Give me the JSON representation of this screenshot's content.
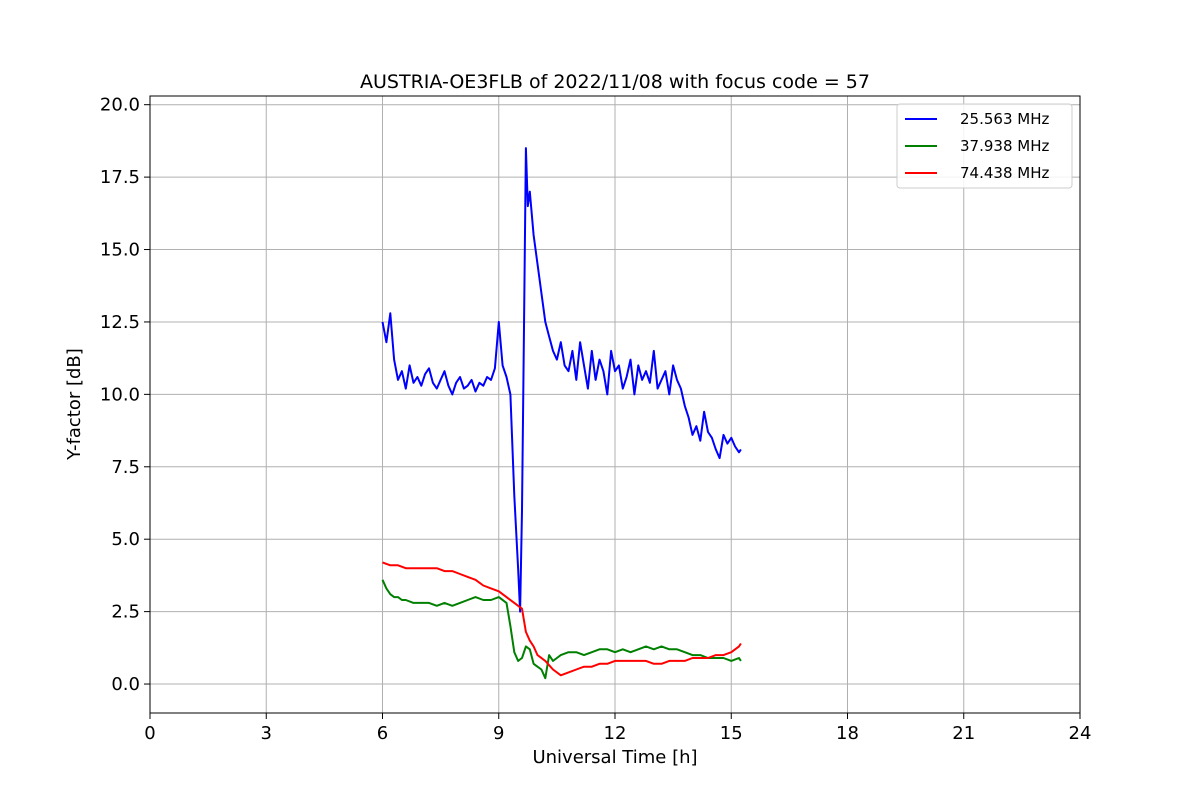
{
  "chart_data": {
    "type": "line",
    "title": "AUSTRIA-OE3FLB of 2022/11/08 with focus code = 57",
    "xlabel": "Universal Time [h]",
    "ylabel": "Y-factor [dB]",
    "xlim": [
      0,
      24
    ],
    "ylim": [
      -1,
      20.3
    ],
    "xticks": [
      0,
      3,
      6,
      9,
      12,
      15,
      18,
      21,
      24
    ],
    "xtick_labels": [
      "0",
      "3",
      "6",
      "9",
      "12",
      "15",
      "18",
      "21",
      "24"
    ],
    "yticks": [
      0,
      2.5,
      5,
      7.5,
      10,
      12.5,
      15,
      17.5,
      20
    ],
    "ytick_labels": [
      "0.0",
      "2.5",
      "5.0",
      "7.5",
      "10.0",
      "12.5",
      "15.0",
      "17.5",
      "20.0"
    ],
    "grid": true,
    "legend_position": "top-right",
    "series": [
      {
        "name": "25.563 MHz",
        "color": "#0000ff",
        "x": [
          6.0,
          6.1,
          6.2,
          6.3,
          6.4,
          6.5,
          6.6,
          6.7,
          6.8,
          6.9,
          7.0,
          7.1,
          7.2,
          7.3,
          7.4,
          7.5,
          7.6,
          7.7,
          7.8,
          7.9,
          8.0,
          8.1,
          8.2,
          8.3,
          8.4,
          8.5,
          8.6,
          8.7,
          8.8,
          8.9,
          9.0,
          9.1,
          9.2,
          9.3,
          9.4,
          9.5,
          9.55,
          9.6,
          9.65,
          9.7,
          9.75,
          9.8,
          9.9,
          10.0,
          10.1,
          10.2,
          10.3,
          10.4,
          10.5,
          10.6,
          10.7,
          10.8,
          10.9,
          11.0,
          11.1,
          11.2,
          11.3,
          11.4,
          11.5,
          11.6,
          11.7,
          11.8,
          11.9,
          12.0,
          12.1,
          12.2,
          12.3,
          12.4,
          12.5,
          12.6,
          12.7,
          12.8,
          12.9,
          13.0,
          13.1,
          13.2,
          13.3,
          13.4,
          13.5,
          13.6,
          13.7,
          13.8,
          13.9,
          14.0,
          14.1,
          14.2,
          14.3,
          14.4,
          14.5,
          14.6,
          14.7,
          14.8,
          14.9,
          15.0,
          15.1,
          15.2,
          15.25
        ],
        "values": [
          12.5,
          11.8,
          12.8,
          11.2,
          10.5,
          10.8,
          10.2,
          11.0,
          10.4,
          10.6,
          10.3,
          10.7,
          10.9,
          10.4,
          10.2,
          10.5,
          10.8,
          10.3,
          10.0,
          10.4,
          10.6,
          10.2,
          10.3,
          10.5,
          10.1,
          10.4,
          10.3,
          10.6,
          10.5,
          10.9,
          12.5,
          11.0,
          10.6,
          10.0,
          6.5,
          4.0,
          2.5,
          6.0,
          12.0,
          18.5,
          16.5,
          17.0,
          15.5,
          14.5,
          13.5,
          12.5,
          12.0,
          11.5,
          11.2,
          11.8,
          11.0,
          10.8,
          11.5,
          10.5,
          11.8,
          11.0,
          10.2,
          11.5,
          10.5,
          11.2,
          10.8,
          10.0,
          11.5,
          10.8,
          11.0,
          10.2,
          10.6,
          11.2,
          10.0,
          11.0,
          10.5,
          10.8,
          10.4,
          11.5,
          10.2,
          10.5,
          10.8,
          10.0,
          11.0,
          10.5,
          10.2,
          9.6,
          9.2,
          8.6,
          8.9,
          8.4,
          9.4,
          8.7,
          8.5,
          8.1,
          7.8,
          8.6,
          8.3,
          8.5,
          8.2,
          8.0,
          8.1
        ]
      },
      {
        "name": "37.938 MHz",
        "color": "#008000",
        "x": [
          6.0,
          6.1,
          6.2,
          6.3,
          6.4,
          6.5,
          6.6,
          6.8,
          7.0,
          7.2,
          7.4,
          7.6,
          7.8,
          8.0,
          8.2,
          8.4,
          8.6,
          8.8,
          9.0,
          9.2,
          9.3,
          9.4,
          9.5,
          9.6,
          9.7,
          9.8,
          9.9,
          10.0,
          10.1,
          10.2,
          10.3,
          10.4,
          10.5,
          10.6,
          10.8,
          11.0,
          11.2,
          11.4,
          11.6,
          11.8,
          12.0,
          12.2,
          12.4,
          12.6,
          12.8,
          13.0,
          13.2,
          13.4,
          13.6,
          13.8,
          14.0,
          14.2,
          14.4,
          14.6,
          14.8,
          15.0,
          15.2,
          15.25
        ],
        "values": [
          3.6,
          3.3,
          3.1,
          3.0,
          3.0,
          2.9,
          2.9,
          2.8,
          2.8,
          2.8,
          2.7,
          2.8,
          2.7,
          2.8,
          2.9,
          3.0,
          2.9,
          2.9,
          3.0,
          2.8,
          2.0,
          1.1,
          0.8,
          0.9,
          1.3,
          1.2,
          0.7,
          0.6,
          0.5,
          0.2,
          1.0,
          0.8,
          0.9,
          1.0,
          1.1,
          1.1,
          1.0,
          1.1,
          1.2,
          1.2,
          1.1,
          1.2,
          1.1,
          1.2,
          1.3,
          1.2,
          1.3,
          1.2,
          1.2,
          1.1,
          1.0,
          1.0,
          0.9,
          0.9,
          0.9,
          0.8,
          0.9,
          0.8
        ]
      },
      {
        "name": "74.438 MHz",
        "color": "#ff0000",
        "x": [
          6.0,
          6.2,
          6.4,
          6.6,
          6.8,
          7.0,
          7.2,
          7.4,
          7.6,
          7.8,
          8.0,
          8.2,
          8.4,
          8.6,
          8.8,
          9.0,
          9.2,
          9.4,
          9.6,
          9.7,
          9.8,
          9.9,
          10.0,
          10.2,
          10.4,
          10.6,
          10.8,
          11.0,
          11.2,
          11.4,
          11.6,
          11.8,
          12.0,
          12.2,
          12.4,
          12.6,
          12.8,
          13.0,
          13.2,
          13.4,
          13.6,
          13.8,
          14.0,
          14.2,
          14.4,
          14.6,
          14.8,
          15.0,
          15.2,
          15.25
        ],
        "values": [
          4.2,
          4.1,
          4.1,
          4.0,
          4.0,
          4.0,
          4.0,
          4.0,
          3.9,
          3.9,
          3.8,
          3.7,
          3.6,
          3.4,
          3.3,
          3.2,
          3.0,
          2.8,
          2.6,
          1.8,
          1.5,
          1.3,
          1.0,
          0.8,
          0.5,
          0.3,
          0.4,
          0.5,
          0.6,
          0.6,
          0.7,
          0.7,
          0.8,
          0.8,
          0.8,
          0.8,
          0.8,
          0.7,
          0.7,
          0.8,
          0.8,
          0.8,
          0.9,
          0.9,
          0.9,
          1.0,
          1.0,
          1.1,
          1.3,
          1.4
        ]
      }
    ]
  }
}
